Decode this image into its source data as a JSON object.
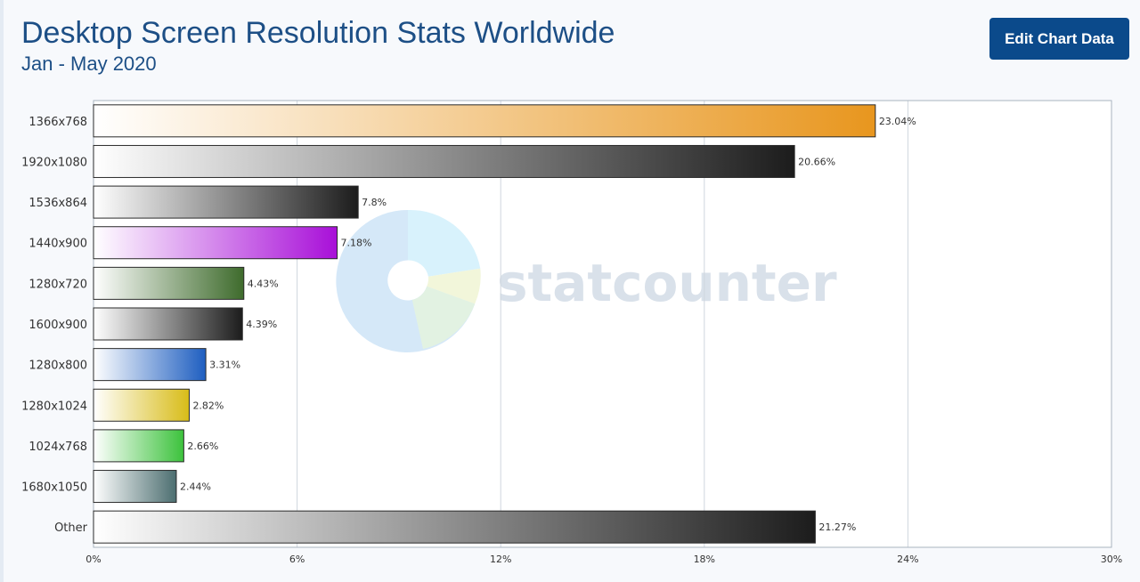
{
  "header": {
    "title": "Desktop Screen Resolution Stats Worldwide",
    "subtitle": "Jan - May 2020",
    "edit_button_label": "Edit Chart Data"
  },
  "watermark": {
    "text": "statcounter"
  },
  "colors": {
    "title": "#1d4f86",
    "button_bg": "#0b4a8b",
    "bar_1366x768": "#e8961e",
    "bar_dark": "#1c1c1c",
    "bar_1440x900": "#a80fd8",
    "bar_1280x720": "#3e6b2c",
    "bar_1280x800": "#1e5ec0",
    "bar_1280x1024": "#d8bc18",
    "bar_1024x768": "#3cc23c",
    "bar_1680x1050": "#4c6e70"
  },
  "chart_data": {
    "type": "bar",
    "orientation": "horizontal",
    "title": "Desktop Screen Resolution Stats Worldwide",
    "subtitle": "Jan - May 2020",
    "categories": [
      "1366x768",
      "1920x1080",
      "1536x864",
      "1440x900",
      "1280x720",
      "1600x900",
      "1280x800",
      "1280x1024",
      "1024x768",
      "1680x1050",
      "Other"
    ],
    "values": [
      23.04,
      20.66,
      7.8,
      7.18,
      4.43,
      4.39,
      3.31,
      2.82,
      2.66,
      2.44,
      21.27
    ],
    "value_labels": [
      "23.04%",
      "20.66%",
      "7.8%",
      "7.18%",
      "4.43%",
      "4.39%",
      "3.31%",
      "2.82%",
      "2.66%",
      "2.44%",
      "21.27%"
    ],
    "bar_colors": [
      "#e8961e",
      "#1c1c1c",
      "#1c1c1c",
      "#a80fd8",
      "#3e6b2c",
      "#1c1c1c",
      "#1e5ec0",
      "#d8bc18",
      "#3cc23c",
      "#4c6e70",
      "#1c1c1c"
    ],
    "x_ticks": [
      0,
      6,
      12,
      18,
      24,
      30
    ],
    "x_tick_labels": [
      "0%",
      "6%",
      "12%",
      "18%",
      "24%",
      "30%"
    ],
    "xlim": [
      0,
      30
    ],
    "xlabel": "",
    "ylabel": "",
    "grid": true
  }
}
